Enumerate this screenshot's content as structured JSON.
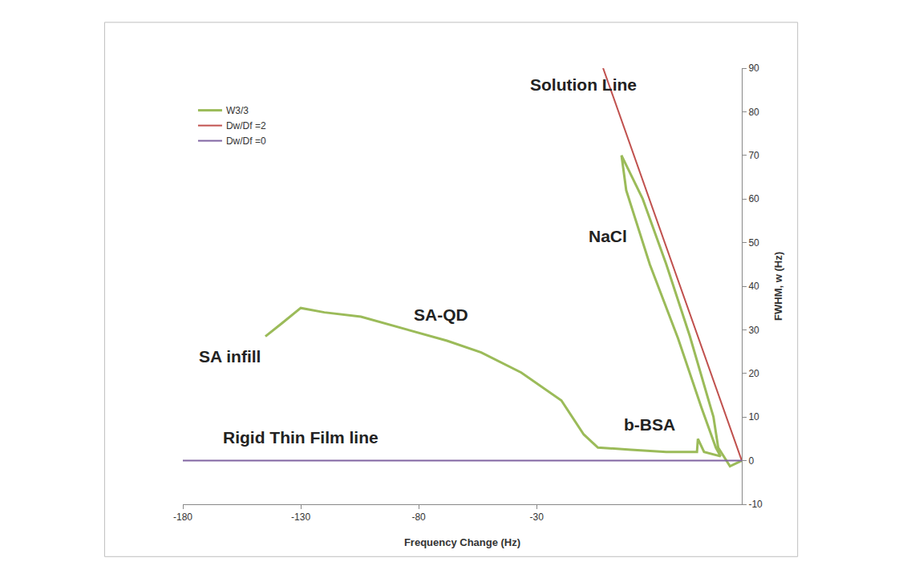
{
  "chart_data": {
    "type": "line",
    "x_label": "Frequency Change (Hz)",
    "y_label": "FWHM, w (Hz)",
    "xlim": [
      -180,
      57
    ],
    "xticks": [
      -180,
      -130,
      -80,
      -30
    ],
    "ylim": [
      -10,
      90
    ],
    "yticks": [
      -10,
      0,
      10,
      20,
      30,
      40,
      50,
      60,
      70,
      80,
      90
    ],
    "grid": false,
    "legend": "upper left",
    "series": [
      {
        "name": "W3/3",
        "color": "#9bbb59",
        "x": [
          57,
          52,
          47,
          45,
          35,
          25,
          15,
          6,
          8,
          18,
          30,
          40,
          46,
          48,
          41,
          38.4,
          38,
          25,
          10,
          -4,
          -10,
          -19.5,
          -36.5,
          -53.5,
          -68,
          -80.7,
          -104.5,
          -120,
          -130,
          -138,
          -145
        ],
        "values": [
          0,
          -1.3,
          3,
          10,
          28.5,
          45,
          60,
          70,
          62,
          45,
          28,
          12,
          3,
          1,
          2,
          5,
          2,
          2,
          2.5,
          3,
          6,
          13.8,
          20.2,
          24.8,
          27.5,
          29.4,
          33,
          34,
          35,
          31.5,
          28.5
        ]
      },
      {
        "name": "Dw/Df =2",
        "color": "#c0504d",
        "x": [
          -1.8,
          57
        ],
        "values": [
          90,
          0
        ]
      },
      {
        "name": "Dw/Df =0",
        "color": "#8064a2",
        "x": [
          -180,
          57
        ],
        "values": [
          0,
          0
        ]
      }
    ],
    "annotations": [
      {
        "text": "Solution Line",
        "x": -10.3,
        "y": 86.3
      },
      {
        "text": "NaCl",
        "x": 0.3,
        "y": 51.5
      },
      {
        "text": "SA-QD",
        "x": -70.5,
        "y": 33.5
      },
      {
        "text": "SA infill",
        "x": -160,
        "y": 24
      },
      {
        "text": "b-BSA",
        "x": 18,
        "y": 8.3
      },
      {
        "text": "Rigid Thin Film line",
        "x": -130,
        "y": 5.3
      }
    ]
  }
}
